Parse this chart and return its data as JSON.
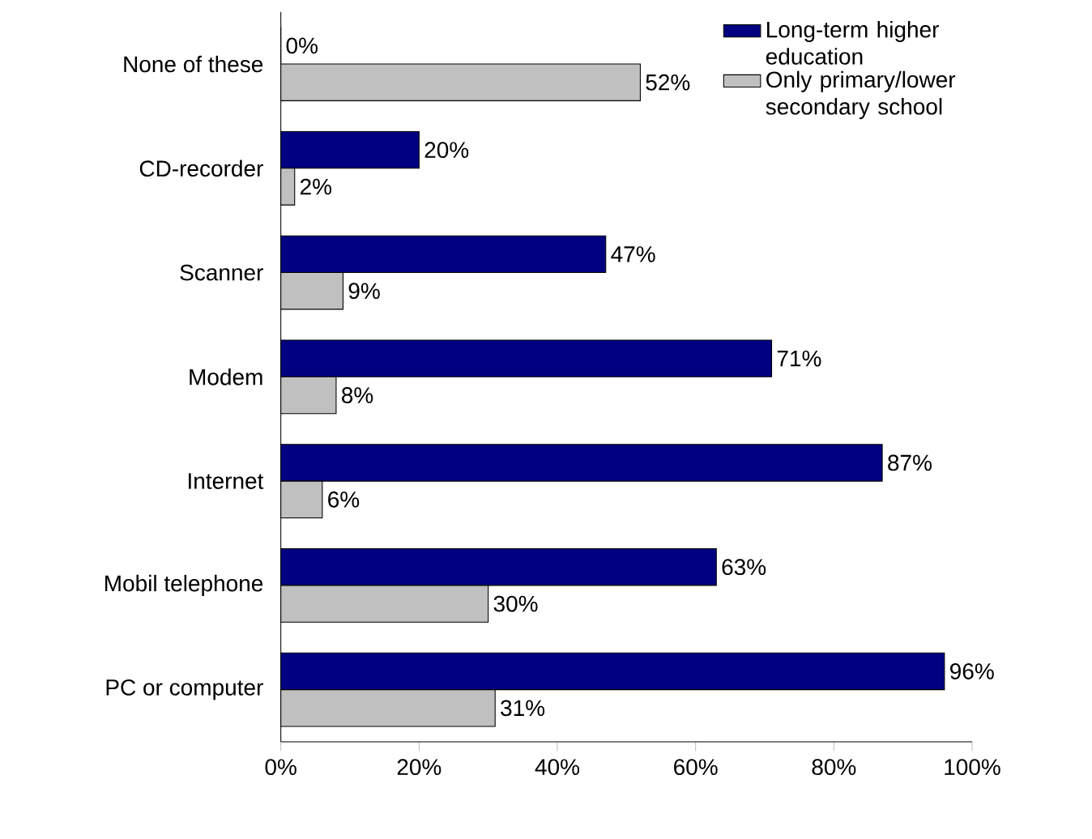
{
  "chart_data": {
    "type": "bar",
    "orientation": "horizontal",
    "categories": [
      "None of these",
      "CD-recorder",
      "Scanner",
      "Modem",
      "Internet",
      "Mobil telephone",
      "PC or computer"
    ],
    "series": [
      {
        "name": "Long-term higher education",
        "color": "#000080",
        "values": [
          0,
          20,
          47,
          71,
          87,
          63,
          96
        ],
        "value_labels": [
          "0%",
          "20%",
          "47%",
          "71%",
          "87%",
          "63%",
          "96%"
        ]
      },
      {
        "name": "Only primary/lower secondary school",
        "color": "#c0c0c0",
        "values": [
          52,
          2,
          9,
          8,
          6,
          30,
          31
        ],
        "value_labels": [
          "52%",
          "2%",
          "9%",
          "8%",
          "6%",
          "30%",
          "31%"
        ]
      }
    ],
    "xlim": [
      0,
      100
    ],
    "xticks": [
      {
        "value": 0,
        "label": "0%"
      },
      {
        "value": 20,
        "label": "20%"
      },
      {
        "value": 40,
        "label": "40%"
      },
      {
        "value": 60,
        "label": "60%"
      },
      {
        "value": 80,
        "label": "80%"
      },
      {
        "value": 100,
        "label": "100%"
      }
    ],
    "legend": "top right"
  }
}
